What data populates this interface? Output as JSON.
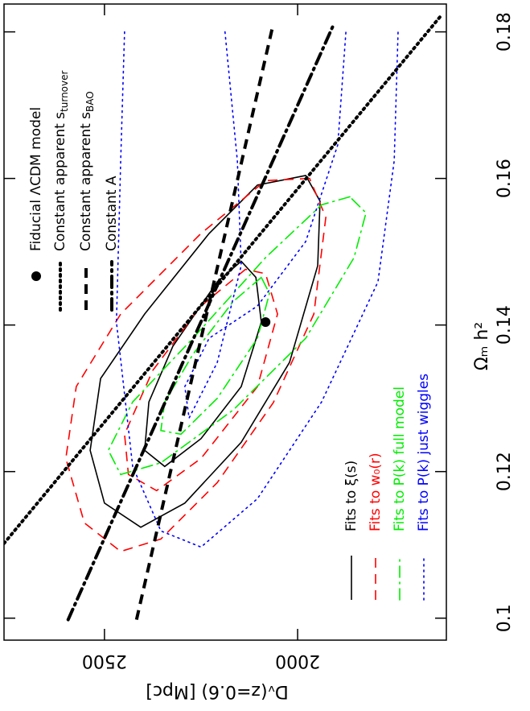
{
  "chart_data": {
    "type": "contour",
    "x_label": "Dᵥ(z=0.6) [Mpc]",
    "y_label": "Ωₘ h²",
    "xlim": [
      2760,
      1615
    ],
    "xticks": [
      2500,
      2000
    ],
    "ylim": [
      0.097,
      0.1838
    ],
    "yticks": [
      0.1,
      0.12,
      0.14,
      0.16,
      0.18
    ],
    "point": {
      "name": "Fiducial ΛCDM model",
      "x": 2083,
      "y": 0.1404,
      "color": "#000000"
    },
    "lines": [
      {
        "name": "Constant apparent s",
        "sub": "turnover",
        "style": "dotted",
        "color": "#000000",
        "x": [
          2760,
          1629
        ],
        "y": [
          0.1102,
          0.1822
        ]
      },
      {
        "name": "Constant apparent s",
        "sub": "BAO",
        "style": "dashed",
        "color": "#000000",
        "x": [
          2417,
          2063
        ],
        "y": [
          0.0998,
          0.1811
        ]
      },
      {
        "name": "Constant A",
        "style": "dashdot",
        "color": "#000000",
        "x": [
          2594,
          1906
        ],
        "y": [
          0.0998,
          0.1811
        ]
      }
    ],
    "contours": [
      {
        "name": "Fits to ξ(s)",
        "style": "solid",
        "color": "#000000",
        "levels": [
          {
            "closed": true,
            "x": [
              1979,
              2104,
              2229,
              2396,
              2510,
              2537,
              2500,
              2406,
              2292,
              2146,
              2021,
              1948,
              1942
            ],
            "y": [
              0.1604,
              0.1591,
              0.1525,
              0.1415,
              0.1327,
              0.1229,
              0.1157,
              0.1124,
              0.1157,
              0.124,
              0.1349,
              0.1481,
              0.1569
            ]
          },
          {
            "closed": true,
            "x": [
              2146,
              2208,
              2323,
              2385,
              2396,
              2344,
              2250,
              2146,
              2094,
              2108
            ],
            "y": [
              0.1487,
              0.1459,
              0.1371,
              0.1295,
              0.1229,
              0.1207,
              0.1245,
              0.1316,
              0.1404,
              0.1465
            ]
          }
        ]
      },
      {
        "name": "Fits to w₀(r)",
        "style": "dashed",
        "color": "#ff0000",
        "levels": [
          {
            "closed": true,
            "x": [
              1969,
              2083,
              2250,
              2458,
              2573,
              2600,
              2552,
              2458,
              2354,
              2208,
              2063,
              1958,
              1927
            ],
            "y": [
              0.16,
              0.1597,
              0.1525,
              0.1415,
              0.1316,
              0.1218,
              0.113,
              0.1091,
              0.1108,
              0.1185,
              0.1294,
              0.1415,
              0.1547
            ]
          },
          {
            "closed": true,
            "x": [
              2135,
              2250,
              2375,
              2448,
              2438,
              2365,
              2250,
              2104,
              2052,
              2083
            ],
            "y": [
              0.1476,
              0.1426,
              0.1338,
              0.1251,
              0.1196,
              0.1174,
              0.1218,
              0.1316,
              0.1415,
              0.147
            ]
          }
        ]
      },
      {
        "name": "Fits to P(k) full model",
        "style": "dashdot",
        "color": "#00ee00",
        "levels": [
          {
            "closed": true,
            "x": [
              1865,
              1938,
              2083,
              2271,
              2427,
              2490,
              2458,
              2354,
              2167,
              1979,
              1854,
              1823
            ],
            "y": [
              0.1575,
              0.1564,
              0.1492,
              0.1382,
              0.1295,
              0.1229,
              0.1196,
              0.1212,
              0.1284,
              0.1382,
              0.1492,
              0.1553
            ]
          },
          {
            "closed": true,
            "x": [
              2094,
              2167,
              2271,
              2344,
              2354,
              2302,
              2208,
              2104,
              2073
            ],
            "y": [
              0.1465,
              0.1432,
              0.136,
              0.1295,
              0.1256,
              0.1251,
              0.13,
              0.1382,
              0.1443
            ]
          }
        ]
      },
      {
        "name": "Fits to P(k) just wiggles",
        "style": "dotted",
        "color": "#0000ff",
        "levels": [
          {
            "closed": false,
            "x": [
              2448,
              2458,
              2469,
              2427,
              2354,
              2250,
              2104,
              1938,
              1792,
              1750,
              1740
            ],
            "y": [
              0.18,
              0.1624,
              0.1404,
              0.1207,
              0.1119,
              0.1097,
              0.1163,
              0.1295,
              0.1459,
              0.1624,
              0.18
            ]
          },
          {
            "closed": false,
            "x": [
              2188,
              2156,
              2146,
              2208,
              2281,
              2292,
              2229,
              2104,
              1979,
              1896,
              1875
            ],
            "y": [
              0.18,
              0.1624,
              0.1481,
              0.1349,
              0.1273,
              0.1316,
              0.1382,
              0.1426,
              0.1514,
              0.1646,
              0.18
            ]
          }
        ]
      }
    ]
  }
}
